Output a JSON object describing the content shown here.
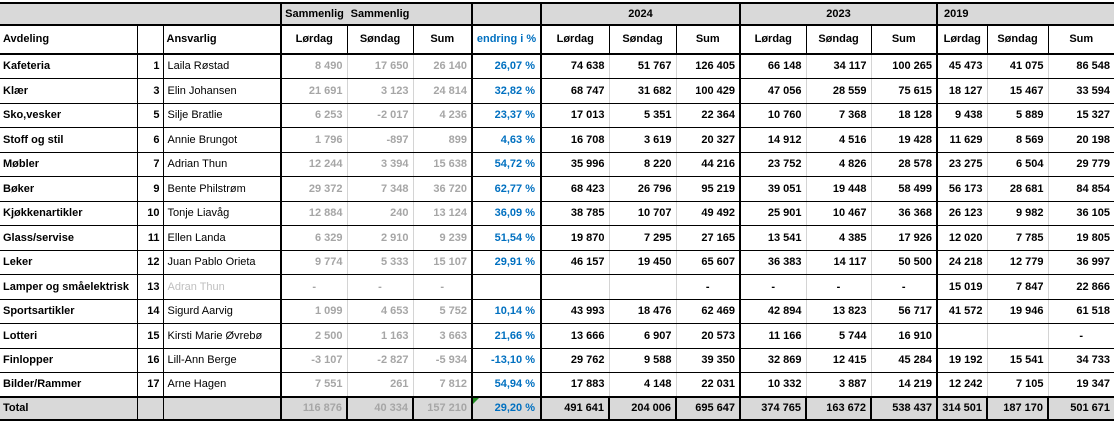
{
  "header": {
    "sammenlig_label": "Sammenlig",
    "year_2024": "2024",
    "year_2023": "2023",
    "year_2019": "2019",
    "avdeling": "Avdeling",
    "ansvarlig": "Ansvarlig",
    "lordag": "Lørdag",
    "sondag": "Søndag",
    "sum": "Sum",
    "endring": "endring i %"
  },
  "colors": {
    "accent_blue": "#0070C0",
    "muted_number_gray": "#A6A6A6",
    "muted_name_gray": "#BFBFBF",
    "header_bg": "#D9D9D9",
    "grid_light": "#D4D4D4",
    "flag_green": "#228B22"
  },
  "rows": [
    {
      "avdeling": "Kafeteria",
      "nr": "1",
      "ansvarlig": "Laila Røstad",
      "sammenlig": [
        "8 490",
        "17 650",
        "26 140"
      ],
      "endring": "26,07 %",
      "y2024": [
        "74 638",
        "51 767",
        "126 405"
      ],
      "y2023": [
        "66 148",
        "34 117",
        "100 265"
      ],
      "y2019": [
        "45 473",
        "41 075",
        "86 548"
      ]
    },
    {
      "avdeling": "Klær",
      "nr": "3",
      "ansvarlig": "Elin Johansen",
      "sammenlig": [
        "21 691",
        "3 123",
        "24 814"
      ],
      "endring": "32,82 %",
      "y2024": [
        "68 747",
        "31 682",
        "100 429"
      ],
      "y2023": [
        "47 056",
        "28 559",
        "75 615"
      ],
      "y2019": [
        "18 127",
        "15 467",
        "33 594"
      ]
    },
    {
      "avdeling": "Sko,vesker",
      "nr": "5",
      "ansvarlig": "Silje Bratlie",
      "sammenlig": [
        "6 253",
        "-2 017",
        "4 236"
      ],
      "endring": "23,37 %",
      "y2024": [
        "17 013",
        "5 351",
        "22 364"
      ],
      "y2023": [
        "10 760",
        "7 368",
        "18 128"
      ],
      "y2019": [
        "9 438",
        "5 889",
        "15 327"
      ]
    },
    {
      "avdeling": "Stoff og stil",
      "nr": "6",
      "ansvarlig": "Annie Brungot",
      "sammenlig": [
        "1 796",
        "-897",
        "899"
      ],
      "endring": "4,63 %",
      "y2024": [
        "16 708",
        "3 619",
        "20 327"
      ],
      "y2023": [
        "14 912",
        "4 516",
        "19 428"
      ],
      "y2019": [
        "11 629",
        "8 569",
        "20 198"
      ]
    },
    {
      "avdeling": "Møbler",
      "nr": "7",
      "ansvarlig": "Adrian Thun",
      "sammenlig": [
        "12 244",
        "3 394",
        "15 638"
      ],
      "endring": "54,72 %",
      "y2024": [
        "35 996",
        "8 220",
        "44 216"
      ],
      "y2023": [
        "23 752",
        "4 826",
        "28 578"
      ],
      "y2019": [
        "23 275",
        "6 504",
        "29 779"
      ]
    },
    {
      "avdeling": "Bøker",
      "nr": "9",
      "ansvarlig": "Bente Philstrøm",
      "sammenlig": [
        "29 372",
        "7 348",
        "36 720"
      ],
      "endring": "62,77 %",
      "y2024": [
        "68 423",
        "26 796",
        "95 219"
      ],
      "y2023": [
        "39 051",
        "19 448",
        "58 499"
      ],
      "y2019": [
        "56 173",
        "28 681",
        "84 854"
      ]
    },
    {
      "avdeling": "Kjøkkenartikler",
      "nr": "10",
      "ansvarlig": "Tonje Liavåg",
      "sammenlig": [
        "12 884",
        "240",
        "13 124"
      ],
      "endring": "36,09 %",
      "y2024": [
        "38 785",
        "10 707",
        "49 492"
      ],
      "y2023": [
        "25 901",
        "10 467",
        "36 368"
      ],
      "y2019": [
        "26 123",
        "9 982",
        "36 105"
      ]
    },
    {
      "avdeling": "Glass/servise",
      "nr": "11",
      "ansvarlig": "Ellen Landa",
      "sammenlig": [
        "6 329",
        "2 910",
        "9 239"
      ],
      "endring": "51,54 %",
      "y2024": [
        "19 870",
        "7 295",
        "27 165"
      ],
      "y2023": [
        "13 541",
        "4 385",
        "17 926"
      ],
      "y2019": [
        "12 020",
        "7 785",
        "19 805"
      ]
    },
    {
      "avdeling": "Leker",
      "nr": "12",
      "ansvarlig": "Juan Pablo Orieta",
      "sammenlig": [
        "9 774",
        "5 333",
        "15 107"
      ],
      "endring": "29,91 %",
      "y2024": [
        "46 157",
        "19 450",
        "65 607"
      ],
      "y2023": [
        "36 383",
        "14 117",
        "50 500"
      ],
      "y2019": [
        "24 218",
        "12 779",
        "36 997"
      ]
    },
    {
      "avdeling": "Lamper og småelektrisk",
      "nr": "13",
      "ansvarlig": "Adran Thun",
      "muted": true,
      "sammenlig": [
        "-",
        "-",
        "-"
      ],
      "endring": "",
      "y2024": [
        "",
        "",
        "-"
      ],
      "y2023": [
        "-",
        "-",
        "-"
      ],
      "y2019": [
        "15 019",
        "7 847",
        "22 866"
      ]
    },
    {
      "avdeling": "Sportsartikler",
      "nr": "14",
      "ansvarlig": "Sigurd Aarvig",
      "sammenlig": [
        "1 099",
        "4 653",
        "5 752"
      ],
      "endring": "10,14 %",
      "y2024": [
        "43 993",
        "18 476",
        "62 469"
      ],
      "y2023": [
        "42 894",
        "13 823",
        "56 717"
      ],
      "y2019": [
        "41 572",
        "19 946",
        "61 518"
      ]
    },
    {
      "avdeling": "Lotteri",
      "nr": "15",
      "ansvarlig": "Kirsti Marie Øvrebø",
      "sammenlig": [
        "2 500",
        "1 163",
        "3 663"
      ],
      "endring": "21,66 %",
      "y2024": [
        "13 666",
        "6 907",
        "20 573"
      ],
      "y2023": [
        "11 166",
        "5 744",
        "16 910"
      ],
      "y2019": [
        "",
        "",
        "-"
      ]
    },
    {
      "avdeling": "Finlopper",
      "nr": "16",
      "ansvarlig": "Lill-Ann Berge",
      "sammenlig": [
        "-3 107",
        "-2 827",
        "-5 934"
      ],
      "endring": "-13,10 %",
      "y2024": [
        "29 762",
        "9 588",
        "39 350"
      ],
      "y2023": [
        "32 869",
        "12 415",
        "45 284"
      ],
      "y2019": [
        "19 192",
        "15 541",
        "34 733"
      ]
    },
    {
      "avdeling": "Bilder/Rammer",
      "nr": "17",
      "ansvarlig": "Arne Hagen",
      "sammenlig": [
        "7 551",
        "261",
        "7 812"
      ],
      "endring": "54,94 %",
      "y2024": [
        "17 883",
        "4 148",
        "22 031"
      ],
      "y2023": [
        "10 332",
        "3 887",
        "14 219"
      ],
      "y2019": [
        "12 242",
        "7 105",
        "19 347"
      ]
    }
  ],
  "total": {
    "avdeling": "Total",
    "nr": "",
    "ansvarlig": "",
    "sammenlig": [
      "116 876",
      "40 334",
      "157 210"
    ],
    "endring": "29,20 %",
    "y2024": [
      "491 641",
      "204 006",
      "695 647"
    ],
    "y2023": [
      "374 765",
      "163 672",
      "538 437"
    ],
    "y2019": [
      "314 501",
      "187 170",
      "501 671"
    ]
  }
}
